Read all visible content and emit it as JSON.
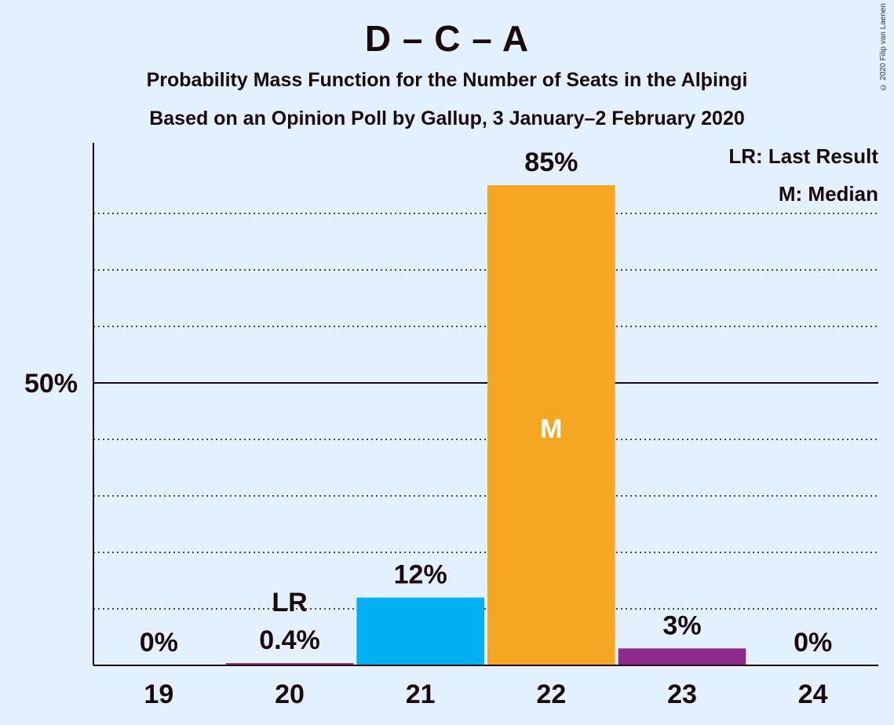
{
  "title": "D – C – A",
  "subtitle1": "Probability Mass Function for the Number of Seats in the Alþingi",
  "subtitle2": "Based on an Opinion Poll by Gallup, 3 January–2 February 2020",
  "copyright": "© 2020 Filip van Laenen",
  "legend": {
    "last_result": "LR: Last Result",
    "median": "M: Median"
  },
  "chart_data": {
    "type": "bar",
    "categories": [
      "19",
      "20",
      "21",
      "22",
      "23",
      "24"
    ],
    "values": [
      0,
      0.4,
      12,
      85,
      3,
      0
    ],
    "value_labels": [
      "0%",
      "0.4%",
      "12%",
      "85%",
      "3%",
      "0%"
    ],
    "colors": [
      "#f5a623",
      "#8e2a8e",
      "#00b0f0",
      "#f5a623",
      "#8e2a8e",
      "#f5a623"
    ],
    "ylim": [
      0,
      92.5
    ],
    "yticks": [
      {
        "value": 50,
        "label": "50%"
      }
    ],
    "grid_dotted": [
      10,
      20,
      30,
      40,
      60,
      70,
      80
    ],
    "last_result_category": "20",
    "last_result_label": "LR",
    "median_category": "22",
    "median_label": "M"
  }
}
